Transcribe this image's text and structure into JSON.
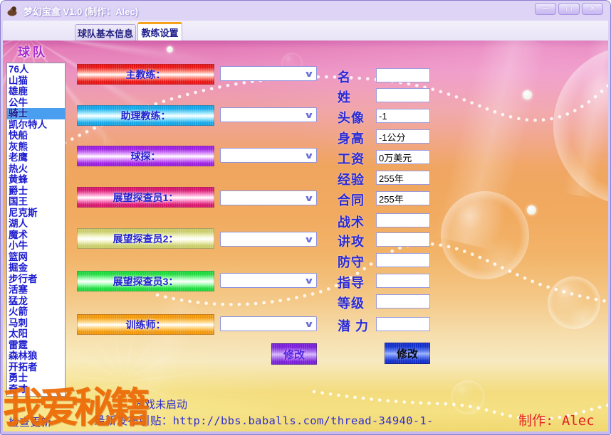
{
  "window": {
    "title": "梦幻宝盒 V1.0 (制作：Alec)",
    "controls": [
      {
        "name": "minimize",
        "glyph": "—"
      },
      {
        "name": "maximize",
        "glyph": "▢"
      },
      {
        "name": "close",
        "glyph": "✕"
      }
    ]
  },
  "tabs": [
    {
      "label": "球队基本信息",
      "active": false
    },
    {
      "label": "教练设置",
      "active": true
    }
  ],
  "sidebar": {
    "title": "球队",
    "selected_index": 4,
    "selected_team": "骑士",
    "teams": [
      "76人",
      "山猫",
      "雄鹿",
      "公牛",
      "骑士",
      "凯尔特人",
      "快船",
      "灰熊",
      "老鹰",
      "热火",
      "黄蜂",
      "爵士",
      "国王",
      "尼克斯",
      "湖人",
      "魔术",
      "小牛",
      "篮网",
      "掘金",
      "步行者",
      "活塞",
      "猛龙",
      "火箭",
      "马刺",
      "太阳",
      "雷霆",
      "森林狼",
      "开拓者",
      "勇士",
      "奇才"
    ]
  },
  "coach_rows": [
    {
      "label": "主教练：",
      "color": "#e61414",
      "light": "#ff9a8a"
    },
    {
      "label": "助理教练：",
      "color": "#14a6e6",
      "light": "#9ae8ff"
    },
    {
      "label": "球探：",
      "color": "#9b1fe0",
      "light": "#e09aff"
    },
    {
      "label": "展望探查员1：",
      "color": "#d6176e",
      "light": "#ff9ad0"
    },
    {
      "label": "展望探查员2：",
      "color": "#c9cc6a",
      "light": "#f3f5c8"
    },
    {
      "label": "展望探查员3：",
      "color": "#1ed93e",
      "light": "#a8ffb8"
    },
    {
      "label": "训练师：",
      "color": "#f1990b",
      "light": "#ffd98a"
    }
  ],
  "attributes": [
    {
      "label": "名",
      "value": ""
    },
    {
      "label": "姓",
      "value": ""
    },
    {
      "label": "头像",
      "value": "-1"
    },
    {
      "label": "身高",
      "value": "-1公分"
    },
    {
      "label": "工资",
      "value": "0万美元"
    },
    {
      "label": "经验",
      "value": "255年"
    },
    {
      "label": "合同",
      "value": "255年"
    },
    {
      "label": "战术",
      "value": ""
    },
    {
      "label": "讲攻",
      "value": ""
    },
    {
      "label": "防守",
      "value": ""
    },
    {
      "label": "指导",
      "value": ""
    },
    {
      "label": "等级",
      "value": ""
    },
    {
      "label": "潜 力",
      "value": ""
    }
  ],
  "buttons": {
    "modify_coaches": "修改",
    "modify_attributes": "修改"
  },
  "status": {
    "line1": "游戏未启动",
    "line2": "最新发布引贴：http://bbs.baballs.com/thread-34940-1-",
    "update_link": "检查更新",
    "credit": "制作: Alec"
  },
  "watermark": "我爱秘籍",
  "colors": {
    "watermark": "#ed6a05",
    "credit_red": "#e32222",
    "selection_blue": "#4a9ef0",
    "tab_active_top": "#f6a21c",
    "modify_left_purple": "#7a1fd8",
    "modify_right_blue": "#1430cc",
    "label_blue": "#2a2ad6"
  }
}
